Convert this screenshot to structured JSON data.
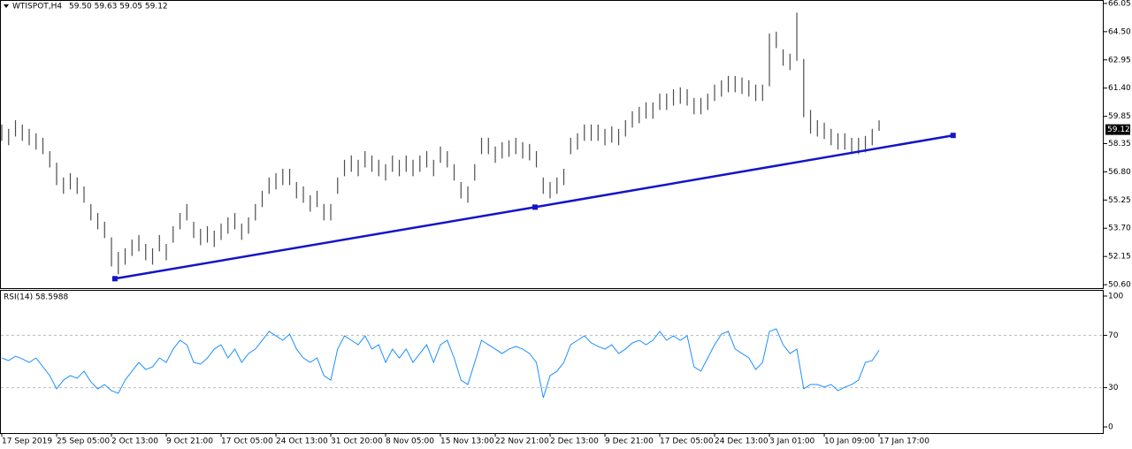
{
  "chart_data": [
    {
      "type": "range_bar",
      "title": "WTISPOT,H4",
      "subtitle": "59.50 59.63 59.05 59.12",
      "color": "#4d4d4d",
      "xlim": [
        -0.26,
        160.77
      ],
      "ylim": [
        50.41,
        66.24
      ],
      "yticks": [
        66.05,
        {
          "value": 64.5,
          "label": "64.50"
        },
        62.95,
        {
          "value": 61.4,
          "label": "61.40"
        },
        59.85,
        58.35,
        {
          "value": 56.8,
          "label": "56.80"
        },
        55.25,
        {
          "value": 53.7,
          "label": "53.70"
        },
        52.15,
        {
          "value": 50.6,
          "label": "50.60"
        }
      ],
      "last_price": 59.12,
      "high": [
        59.4,
        59.16,
        59.64,
        59.4,
        59.16,
        58.92,
        58.67,
        57.94,
        57.3,
        56.49,
        56.73,
        56.49,
        56.0,
        55.03,
        54.54,
        54.06,
        53.2,
        52.4,
        52.6,
        53.08,
        53.33,
        52.84,
        52.6,
        53.33,
        52.84,
        53.81,
        54.54,
        55.03,
        54.06,
        53.67,
        53.81,
        53.57,
        53.96,
        54.3,
        54.54,
        53.96,
        54.3,
        55.03,
        55.76,
        56.49,
        56.73,
        56.97,
        56.97,
        56.24,
        56.0,
        55.51,
        55.76,
        55.03,
        55.03,
        56.49,
        57.46,
        57.7,
        57.46,
        57.94,
        57.7,
        57.46,
        57.22,
        57.7,
        57.46,
        57.7,
        57.46,
        57.7,
        57.94,
        57.46,
        58.19,
        57.94,
        57.22,
        56.24,
        56.0,
        57.22,
        58.67,
        58.67,
        58.19,
        58.43,
        58.53,
        58.67,
        58.43,
        58.33,
        57.94,
        56.49,
        56.24,
        56.49,
        56.97,
        58.67,
        58.92,
        59.4,
        59.4,
        59.4,
        59.16,
        59.3,
        59.16,
        59.64,
        60.13,
        60.37,
        60.62,
        60.62,
        61.1,
        61.1,
        61.34,
        61.44,
        61.34,
        60.86,
        60.86,
        61.1,
        61.59,
        61.83,
        62.07,
        62.07,
        61.98,
        61.83,
        61.59,
        61.59,
        64.4,
        64.5,
        63.53,
        63.29,
        65.55,
        63.0,
        60.2,
        59.64,
        59.5,
        59.16,
        58.92,
        58.92,
        58.67,
        58.67,
        58.77,
        59.16,
        59.63
      ],
      "low": [
        58.5,
        58.26,
        58.74,
        58.5,
        58.26,
        58.02,
        57.77,
        57.04,
        56.07,
        55.59,
        55.83,
        55.59,
        55.1,
        54.13,
        53.64,
        53.16,
        51.6,
        51.17,
        51.7,
        52.18,
        52.43,
        51.94,
        51.7,
        52.43,
        51.94,
        52.91,
        53.64,
        54.13,
        53.16,
        52.77,
        52.91,
        52.67,
        53.06,
        53.4,
        53.64,
        53.06,
        53.4,
        54.13,
        54.86,
        55.59,
        55.83,
        56.07,
        56.07,
        55.34,
        55.1,
        54.61,
        54.86,
        54.13,
        54.13,
        55.59,
        56.56,
        56.8,
        56.56,
        57.04,
        56.8,
        56.56,
        56.32,
        56.8,
        56.56,
        56.8,
        56.56,
        56.8,
        57.04,
        56.56,
        57.29,
        57.04,
        56.32,
        55.34,
        55.1,
        56.32,
        57.77,
        57.77,
        57.29,
        57.53,
        57.63,
        57.77,
        57.53,
        57.43,
        57.04,
        55.59,
        55.34,
        55.59,
        56.07,
        57.77,
        58.02,
        58.5,
        58.5,
        58.5,
        58.26,
        58.4,
        58.26,
        58.74,
        59.23,
        59.47,
        59.72,
        59.72,
        60.2,
        60.2,
        60.44,
        60.54,
        60.44,
        59.96,
        59.96,
        60.2,
        60.69,
        60.93,
        61.17,
        61.17,
        61.08,
        60.93,
        60.69,
        60.69,
        61.5,
        63.6,
        62.63,
        62.39,
        62.9,
        59.8,
        58.9,
        58.74,
        58.6,
        58.26,
        58.02,
        58.02,
        57.77,
        57.77,
        57.87,
        58.26,
        59.05
      ],
      "trendline": {
        "color": "#1414c8",
        "x": [
          16.5,
          77.8,
          138.8
        ],
        "y": [
          50.93,
          54.86,
          58.8
        ]
      }
    },
    {
      "type": "line",
      "title": "RSI(14) 58.5988",
      "color": "#1e90ff",
      "xlim": [
        -0.26,
        160.77
      ],
      "ylim": [
        -4.7,
        104.7
      ],
      "yticks": [
        100,
        70,
        30,
        0
      ],
      "levels": [
        70,
        30
      ],
      "xticks": [
        {
          "value": 0,
          "label": "17 Sep 2019"
        },
        {
          "value": 8,
          "label": "25 Sep 05:00"
        },
        {
          "value": 16,
          "label": "2 Oct 13:00"
        },
        {
          "value": 24,
          "label": "9 Oct 21:00"
        },
        {
          "value": 32,
          "label": "17 Oct 05:00"
        },
        {
          "value": 40,
          "label": "24 Oct 13:00"
        },
        {
          "value": 48,
          "label": "31 Oct 20:00"
        },
        {
          "value": 56,
          "label": "8 Nov 05:00"
        },
        {
          "value": 64,
          "label": "15 Nov 13:00"
        },
        {
          "value": 72,
          "label": "22 Nov 21:00"
        },
        {
          "value": 80,
          "label": "2 Dec 13:00"
        },
        {
          "value": 88,
          "label": "9 Dec 21:00"
        },
        {
          "value": 96,
          "label": "17 Dec 05:00"
        },
        {
          "value": 104,
          "label": "24 Dec 13:00"
        },
        {
          "value": 112,
          "label": "3 Jan 01:00"
        },
        {
          "value": 120,
          "label": "10 Jan 09:00"
        },
        {
          "value": 128,
          "label": "17 Jan 17:00"
        }
      ],
      "values": [
        52.7,
        50.7,
        54,
        52,
        49.3,
        52.7,
        45.9,
        39.2,
        29.1,
        35.8,
        39.2,
        37.2,
        42.6,
        34.5,
        29.1,
        32.4,
        27.7,
        25.7,
        35.8,
        42.6,
        49.3,
        43.9,
        45.9,
        52.7,
        49.3,
        59.5,
        66.2,
        62.8,
        49.3,
        48,
        52.7,
        59.5,
        62.8,
        52.7,
        59.5,
        49.3,
        56.1,
        59.5,
        66.2,
        73,
        69.6,
        66.2,
        70.9,
        59.5,
        52.7,
        49.3,
        52.7,
        39.2,
        35.8,
        59.5,
        69.6,
        66.2,
        62.8,
        69.6,
        59.5,
        62.8,
        49.3,
        59.5,
        52.7,
        59.5,
        49.3,
        56.1,
        62.8,
        49.3,
        62.8,
        66.2,
        52.7,
        35.8,
        32.4,
        49.3,
        66.2,
        62.8,
        59.5,
        56.1,
        59.5,
        61.5,
        59.5,
        56.1,
        49.3,
        22.3,
        39.2,
        42.6,
        49.3,
        62.8,
        66.2,
        69.6,
        64.2,
        61.5,
        59.5,
        62.8,
        56.1,
        59.5,
        64.2,
        66.2,
        62.8,
        66.2,
        73,
        66.2,
        69.6,
        66.2,
        69.6,
        45.9,
        42.6,
        52.7,
        62.8,
        70.9,
        73,
        59.5,
        56.1,
        52.7,
        43.9,
        49.3,
        73,
        75,
        62.8,
        56.1,
        59.5,
        29.1,
        32.4,
        32.4,
        30.4,
        32.4,
        27.7,
        30.4,
        32.4,
        35.8,
        49.3,
        50.7,
        58.6
      ]
    }
  ]
}
